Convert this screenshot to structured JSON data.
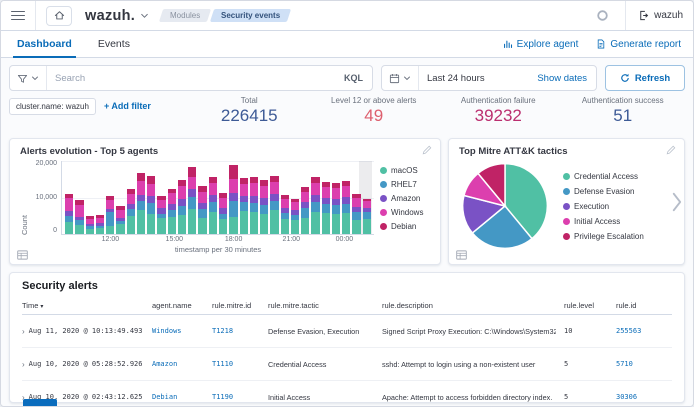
{
  "header": {
    "logo_text": "wazuh.",
    "breadcrumbs": [
      {
        "label": "Modules",
        "state": "inactive"
      },
      {
        "label": "Security events",
        "state": "active"
      }
    ],
    "username": "wazuh"
  },
  "tabs": {
    "items": [
      {
        "label": "Dashboard",
        "active": true
      },
      {
        "label": "Events",
        "active": false
      }
    ],
    "actions": [
      {
        "label": "Explore agent",
        "icon": "bar-chart-icon"
      },
      {
        "label": "Generate report",
        "icon": "report-icon"
      }
    ]
  },
  "query_bar": {
    "search_placeholder": "Search",
    "language_label": "KQL",
    "time_range": "Last 24 hours",
    "show_dates_label": "Show dates",
    "refresh_label": "Refresh"
  },
  "filters": {
    "chips": [
      "cluster.name: wazuh"
    ],
    "add_filter_label": "+ Add filter"
  },
  "stats": [
    {
      "label": "Total",
      "value": "226415",
      "color": "#3d5a96"
    },
    {
      "label": "Level 12 or above alerts",
      "value": "49",
      "color": "#dd5f6e"
    },
    {
      "label": "Authentication failure",
      "value": "39232",
      "color": "#bb2e6f"
    },
    {
      "label": "Authentication success",
      "value": "51",
      "color": "#3d5a96"
    }
  ],
  "chart_data": [
    {
      "type": "bar",
      "stacked": true,
      "title": "Alerts evolution - Top 5 agents",
      "xlabel": "timestamp per 30 minutes",
      "ylabel": "Count",
      "ylim": [
        0,
        20000
      ],
      "y_ticks": [
        "20,000",
        "10,000",
        "0"
      ],
      "x_ticks": [
        {
          "label": "12:00",
          "pos": 0.155
        },
        {
          "label": "15:00",
          "pos": 0.36
        },
        {
          "label": "18:00",
          "pos": 0.55
        },
        {
          "label": "21:00",
          "pos": 0.735
        },
        {
          "label": "00:00",
          "pos": 0.905
        }
      ],
      "legend_position": "right",
      "series": [
        {
          "name": "macOS",
          "color": "#50c0a4",
          "values": [
            3200,
            2400,
            1400,
            1600,
            2200,
            2800,
            4800,
            6500,
            5600,
            4400,
            4600,
            5200,
            6800,
            4300,
            6100,
            4000,
            4700,
            6300,
            5900,
            5500,
            6700,
            4200,
            3900,
            4300,
            6000,
            5700,
            5600,
            5800,
            3800,
            4100
          ]
        },
        {
          "name": "RHEL7",
          "color": "#4498c5",
          "values": [
            1800,
            1400,
            800,
            700,
            3800,
            900,
            2000,
            2500,
            2900,
            1200,
            2000,
            2600,
            3400,
            2500,
            2700,
            1600,
            4300,
            2400,
            2600,
            2500,
            2400,
            1500,
            1400,
            2700,
            2700,
            2400,
            2400,
            2500,
            2200,
            1900
          ]
        },
        {
          "name": "Amazon",
          "color": "#7a52c5",
          "values": [
            1200,
            1000,
            600,
            700,
            900,
            700,
            1500,
            1800,
            1900,
            1400,
            1600,
            1800,
            2000,
            1700,
            1900,
            1500,
            2200,
            1800,
            1900,
            1800,
            1900,
            1300,
            1200,
            1700,
            1900,
            1800,
            1700,
            1800,
            1500,
            1200
          ]
        },
        {
          "name": "Windows",
          "color": "#dc3fae",
          "values": [
            3600,
            3200,
            1400,
            1400,
            2500,
            2300,
            2800,
            3600,
            3400,
            2200,
            3000,
            3600,
            3300,
            3000,
            3300,
            2900,
            3800,
            3200,
            3600,
            3400,
            3300,
            2500,
            2200,
            2900,
            3400,
            3000,
            3000,
            3100,
            2400,
            1800
          ]
        },
        {
          "name": "Debian",
          "color": "#c02366",
          "values": [
            1200,
            1200,
            800,
            800,
            1000,
            1000,
            1200,
            2400,
            2000,
            1100,
            1200,
            1600,
            2800,
            1600,
            1600,
            1200,
            4000,
            1600,
            1700,
            1700,
            1700,
            1100,
            1000,
            1300,
            1600,
            1400,
            1400,
            1400,
            1100,
            700
          ]
        }
      ]
    },
    {
      "type": "pie",
      "title": "Top Mitre ATT&K tactics",
      "legend_position": "right",
      "slices": [
        {
          "label": "Credential Access",
          "percent": 39,
          "color": "#50c0a4"
        },
        {
          "label": "Defense Evasion",
          "percent": 25,
          "color": "#4498c5"
        },
        {
          "label": "Execution",
          "percent": 15,
          "color": "#7a52c5"
        },
        {
          "label": "Initial Access",
          "percent": 10,
          "color": "#dc3fae"
        },
        {
          "label": "Privilege Escalation",
          "percent": 11,
          "color": "#c02366"
        }
      ]
    }
  ],
  "alerts_table": {
    "title": "Security alerts",
    "columns": [
      {
        "label": "Time",
        "sorted": "desc"
      },
      {
        "label": "agent.name"
      },
      {
        "label": "rule.mitre.id"
      },
      {
        "label": "rule.mitre.tactic"
      },
      {
        "label": "rule.description"
      },
      {
        "label": "rule.level"
      },
      {
        "label": "rule.id"
      }
    ],
    "rows": [
      {
        "time": "Aug 11, 2020 @ 10:13:49.493",
        "agent": "Windows",
        "mitre_id": "T1218",
        "tactic": "Defense Evasion, Execution",
        "description": "Signed Script Proxy Execution: C:\\Windows\\System32\\svchost.exe",
        "level": "10",
        "rule_id": "255563"
      },
      {
        "time": "Aug 10, 2020 @ 05:28:52.926",
        "agent": "Amazon",
        "mitre_id": "T1110",
        "tactic": "Credential Access",
        "description": "sshd: Attempt to login using a non-existent user",
        "level": "5",
        "rule_id": "5710"
      },
      {
        "time": "Aug 10, 2020 @ 02:43:12.625",
        "agent": "Debian",
        "mitre_id": "T1190",
        "tactic": "Initial Access",
        "description": "Apache: Attempt to access forbidden directory index.",
        "level": "5",
        "rule_id": "30306"
      }
    ]
  },
  "colors": {
    "primary": "#0a6cb8",
    "panel_border": "#e2e6ee",
    "axis_text": "#69707d"
  }
}
